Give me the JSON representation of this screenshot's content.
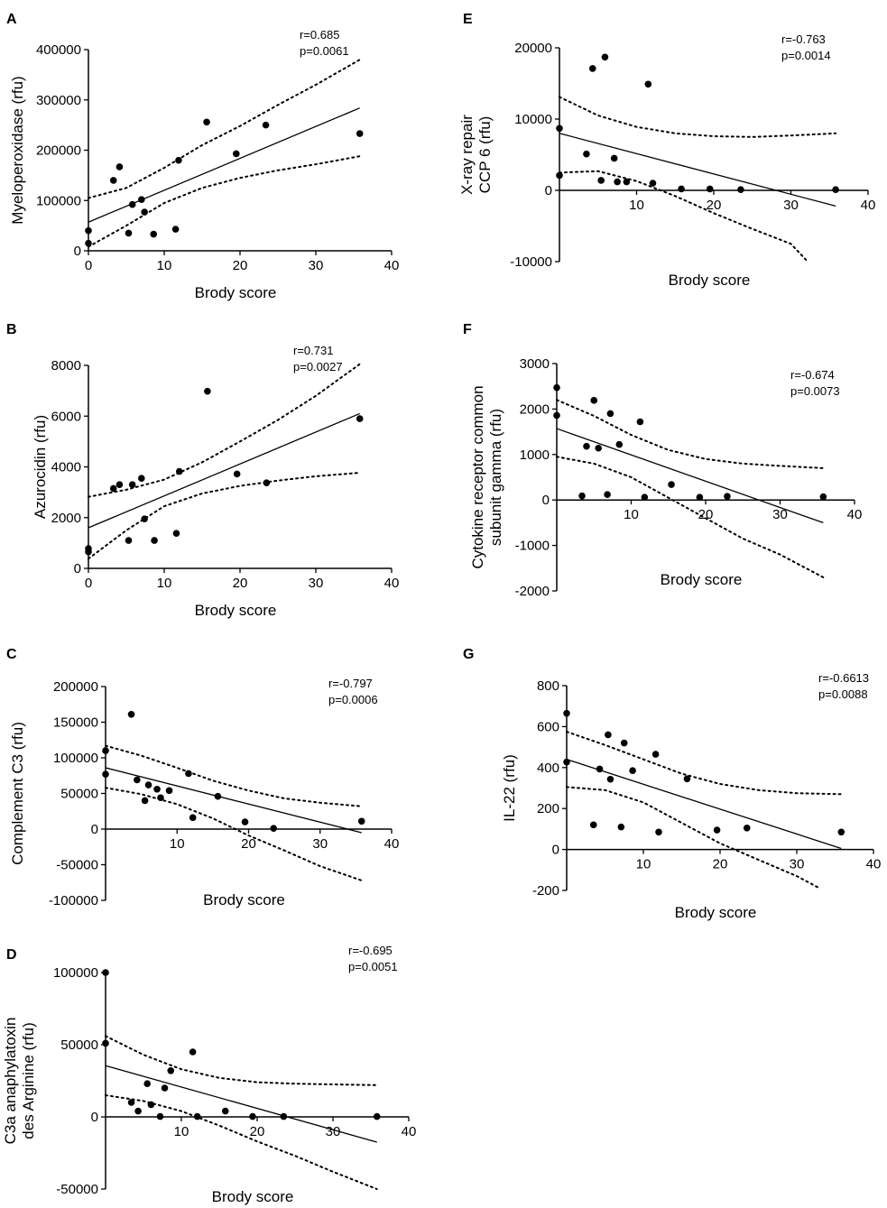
{
  "chart_data": [
    {
      "panel": "A",
      "type": "scatter",
      "ylabel_lines": [
        "Myeloperoxidase (rfu)"
      ],
      "xlabel": "Brody score",
      "xlim": [
        0,
        40
      ],
      "ylim": [
        0,
        400000
      ],
      "xticks": [
        0,
        10,
        20,
        30,
        40
      ],
      "yticks": [
        0,
        100000,
        200000,
        300000,
        400000
      ],
      "stat_r": "r=0.685",
      "stat_p": "p=0.0061",
      "points": [
        [
          0,
          15000
        ],
        [
          0,
          40000
        ],
        [
          3.3,
          140000
        ],
        [
          4.1,
          167000
        ],
        [
          5.3,
          35000
        ],
        [
          5.8,
          92000
        ],
        [
          7,
          102000
        ],
        [
          7.4,
          77000
        ],
        [
          8.6,
          33000
        ],
        [
          11.5,
          43000
        ],
        [
          11.9,
          180000
        ],
        [
          15.6,
          256000
        ],
        [
          19.5,
          193000
        ],
        [
          23.4,
          250000
        ],
        [
          35.8,
          233000
        ]
      ],
      "fit": [
        [
          0,
          57000
        ],
        [
          35.8,
          284000
        ]
      ],
      "ci_upper": [
        [
          0,
          105000
        ],
        [
          5,
          125000
        ],
        [
          10,
          165000
        ],
        [
          15,
          210000
        ],
        [
          20,
          248000
        ],
        [
          25,
          290000
        ],
        [
          30,
          330000
        ],
        [
          35.8,
          380000
        ]
      ],
      "ci_lower": [
        [
          0,
          8000
        ],
        [
          5,
          50000
        ],
        [
          10,
          95000
        ],
        [
          15,
          125000
        ],
        [
          20,
          145000
        ],
        [
          25,
          160000
        ],
        [
          30,
          172000
        ],
        [
          35.8,
          188000
        ]
      ]
    },
    {
      "panel": "B",
      "type": "scatter",
      "ylabel_lines": [
        "Azurocidin (rfu)"
      ],
      "xlabel": "Brody score",
      "xlim": [
        0,
        40
      ],
      "ylim": [
        0,
        8000
      ],
      "xticks": [
        0,
        10,
        20,
        30,
        40
      ],
      "yticks": [
        0,
        2000,
        4000,
        6000,
        8000
      ],
      "stat_r": "r=0.731",
      "stat_p": "p=0.0027",
      "points": [
        [
          0,
          650
        ],
        [
          0,
          780
        ],
        [
          3.3,
          3150
        ],
        [
          4.1,
          3300
        ],
        [
          5.3,
          1100
        ],
        [
          5.8,
          3300
        ],
        [
          7,
          3550
        ],
        [
          7.4,
          1950
        ],
        [
          8.7,
          1100
        ],
        [
          11.6,
          1380
        ],
        [
          12,
          3820
        ],
        [
          15.7,
          6980
        ],
        [
          19.6,
          3720
        ],
        [
          23.5,
          3370
        ],
        [
          35.8,
          5900
        ]
      ],
      "fit": [
        [
          0,
          1600
        ],
        [
          35.8,
          6100
        ]
      ],
      "ci_upper": [
        [
          0,
          2820
        ],
        [
          5,
          3100
        ],
        [
          10,
          3500
        ],
        [
          15,
          4180
        ],
        [
          20,
          5000
        ],
        [
          25,
          5850
        ],
        [
          30,
          6800
        ],
        [
          35.8,
          8050
        ]
      ],
      "ci_lower": [
        [
          0,
          380
        ],
        [
          5,
          1500
        ],
        [
          10,
          2450
        ],
        [
          15,
          2950
        ],
        [
          20,
          3250
        ],
        [
          25,
          3460
        ],
        [
          30,
          3630
        ],
        [
          35.8,
          3770
        ]
      ]
    },
    {
      "panel": "C",
      "type": "scatter",
      "ylabel_lines": [
        "Complement C3 (rfu)"
      ],
      "xlabel": "Brody score",
      "xlim": [
        0,
        40
      ],
      "ylim": [
        -100000,
        200000
      ],
      "xticks": [
        10,
        20,
        30,
        40
      ],
      "yticks": [
        -100000,
        -50000,
        0,
        50000,
        100000,
        150000,
        200000
      ],
      "stat_r": "r=-0.797",
      "stat_p": "p=0.0006",
      "points": [
        [
          0,
          77000
        ],
        [
          0,
          110000
        ],
        [
          3.6,
          161000
        ],
        [
          4.4,
          69000
        ],
        [
          5.5,
          40000
        ],
        [
          6,
          62000
        ],
        [
          7.2,
          56000
        ],
        [
          7.7,
          44000
        ],
        [
          8.9,
          54000
        ],
        [
          11.6,
          78000
        ],
        [
          12.2,
          16000
        ],
        [
          15.7,
          46000
        ],
        [
          19.5,
          10000
        ],
        [
          23.5,
          1000
        ],
        [
          35.8,
          11000
        ]
      ],
      "fit": [
        [
          0,
          86000
        ],
        [
          35.8,
          -5000
        ]
      ],
      "ci_upper": [
        [
          0,
          117000
        ],
        [
          5,
          103000
        ],
        [
          10,
          86000
        ],
        [
          15,
          68000
        ],
        [
          20,
          54000
        ],
        [
          25,
          43000
        ],
        [
          30,
          37000
        ],
        [
          35.8,
          32000
        ]
      ],
      "ci_lower": [
        [
          0,
          58000
        ],
        [
          5,
          49000
        ],
        [
          10,
          35000
        ],
        [
          15,
          15000
        ],
        [
          20,
          -9000
        ],
        [
          25,
          -30000
        ],
        [
          30,
          -52000
        ],
        [
          35.8,
          -72000
        ]
      ]
    },
    {
      "panel": "D",
      "type": "scatter",
      "ylabel_lines": [
        "C3a anaphylatoxin",
        "des Arginine (rfu)"
      ],
      "xlabel": "Brody score",
      "xlim": [
        0,
        40
      ],
      "ylim": [
        -50000,
        100000
      ],
      "xticks": [
        10,
        20,
        30,
        40
      ],
      "yticks": [
        -50000,
        0,
        50000,
        100000
      ],
      "stat_r": "r=-0.695",
      "stat_p": "p=0.0051",
      "points": [
        [
          0,
          100000
        ],
        [
          0,
          51000
        ],
        [
          3.4,
          10000
        ],
        [
          4.3,
          4000
        ],
        [
          5.5,
          23000
        ],
        [
          6,
          8500
        ],
        [
          7.2,
          300
        ],
        [
          7.8,
          20000
        ],
        [
          8.6,
          32000
        ],
        [
          11.5,
          45000
        ],
        [
          12.1,
          300
        ],
        [
          15.8,
          4000
        ],
        [
          19.4,
          300
        ],
        [
          23.5,
          300
        ],
        [
          35.8,
          300
        ]
      ],
      "fit": [
        [
          0,
          35500
        ],
        [
          35.8,
          -17500
        ]
      ],
      "ci_upper": [
        [
          0,
          56000
        ],
        [
          5,
          43000
        ],
        [
          10,
          33000
        ],
        [
          15,
          27000
        ],
        [
          20,
          24000
        ],
        [
          25,
          23000
        ],
        [
          30,
          22500
        ],
        [
          35.8,
          22000
        ]
      ],
      "ci_lower": [
        [
          0,
          15000
        ],
        [
          5,
          11000
        ],
        [
          10,
          4000
        ],
        [
          15,
          -6000
        ],
        [
          20,
          -17000
        ],
        [
          25,
          -27000
        ],
        [
          30,
          -38000
        ],
        [
          35.8,
          -50000
        ]
      ]
    },
    {
      "panel": "E",
      "type": "scatter",
      "ylabel_lines": [
        "X-ray repair",
        "CCP 6  (rfu)"
      ],
      "xlabel": "Brody score",
      "xlim": [
        0,
        40
      ],
      "ylim": [
        -10000,
        20000
      ],
      "xticks": [
        10,
        20,
        30,
        40
      ],
      "yticks": [
        -10000,
        0,
        10000,
        20000
      ],
      "stat_r": "r=-0.763",
      "stat_p": "p=0.0014",
      "points": [
        [
          0,
          8700
        ],
        [
          0,
          2100
        ],
        [
          3.5,
          5100
        ],
        [
          4.3,
          17100
        ],
        [
          5.4,
          1400
        ],
        [
          5.9,
          18700
        ],
        [
          7.1,
          4500
        ],
        [
          7.5,
          1200
        ],
        [
          8.7,
          1200
        ],
        [
          11.5,
          14900
        ],
        [
          12.1,
          1000
        ],
        [
          15.8,
          200
        ],
        [
          19.5,
          200
        ],
        [
          23.5,
          100
        ],
        [
          35.8,
          100
        ]
      ],
      "fit": [
        [
          0,
          8000
        ],
        [
          35.8,
          -2200
        ]
      ],
      "ci_upper": [
        [
          0,
          13100
        ],
        [
          5,
          10500
        ],
        [
          10,
          8900
        ],
        [
          15,
          8000
        ],
        [
          20,
          7600
        ],
        [
          25,
          7500
        ],
        [
          30,
          7700
        ],
        [
          35.8,
          8000
        ]
      ],
      "ci_lower": [
        [
          0,
          2500
        ],
        [
          5,
          2700
        ],
        [
          10,
          1300
        ],
        [
          15,
          -800
        ],
        [
          20,
          -3200
        ],
        [
          25,
          -5400
        ],
        [
          30,
          -7500
        ],
        [
          32,
          -9800
        ]
      ]
    },
    {
      "panel": "F",
      "type": "scatter",
      "ylabel_lines": [
        "Cytokine receptor common",
        "subunit gamma  (rfu)"
      ],
      "xlabel": "Brody score",
      "xlim": [
        0,
        40
      ],
      "ylim": [
        -2000,
        3000
      ],
      "xticks": [
        10,
        20,
        30,
        40
      ],
      "yticks": [
        -2000,
        -1000,
        0,
        1000,
        2000,
        3000
      ],
      "stat_r": "r=-0.674",
      "stat_p": "p=0.0073",
      "points": [
        [
          0,
          2470
        ],
        [
          0,
          1860
        ],
        [
          3.4,
          90
        ],
        [
          4,
          1180
        ],
        [
          5,
          2190
        ],
        [
          5.6,
          1140
        ],
        [
          6.8,
          120
        ],
        [
          7.2,
          1900
        ],
        [
          8.4,
          1220
        ],
        [
          11.2,
          1720
        ],
        [
          11.8,
          60
        ],
        [
          15.4,
          340
        ],
        [
          19.2,
          60
        ],
        [
          22.9,
          80
        ],
        [
          35.8,
          70
        ]
      ],
      "fit": [
        [
          0,
          1570
        ],
        [
          35.8,
          -500
        ]
      ],
      "ci_upper": [
        [
          0,
          2200
        ],
        [
          5,
          1850
        ],
        [
          10,
          1430
        ],
        [
          15,
          1100
        ],
        [
          20,
          900
        ],
        [
          25,
          800
        ],
        [
          30,
          750
        ],
        [
          35.8,
          700
        ]
      ],
      "ci_lower": [
        [
          0,
          950
        ],
        [
          5,
          800
        ],
        [
          10,
          500
        ],
        [
          15,
          50
        ],
        [
          20,
          -400
        ],
        [
          25,
          -850
        ],
        [
          30,
          -1200
        ],
        [
          35.8,
          -1700
        ]
      ]
    },
    {
      "panel": "G",
      "type": "scatter",
      "ylabel_lines": [
        "IL-22 (rfu)"
      ],
      "xlabel": "Brody score",
      "xlim": [
        0,
        40
      ],
      "ylim": [
        -200,
        800
      ],
      "xticks": [
        10,
        20,
        30,
        40
      ],
      "yticks": [
        -200,
        0,
        200,
        400,
        600,
        800
      ],
      "stat_r": "r=-0.6613",
      "stat_p": "p=0.0088",
      "points": [
        [
          0,
          665
        ],
        [
          0,
          427
        ],
        [
          3.5,
          120
        ],
        [
          4.3,
          393
        ],
        [
          5.4,
          560
        ],
        [
          5.7,
          343
        ],
        [
          7.1,
          110
        ],
        [
          7.5,
          520
        ],
        [
          8.6,
          385
        ],
        [
          11.6,
          465
        ],
        [
          12,
          85
        ],
        [
          15.7,
          345
        ],
        [
          19.6,
          95
        ],
        [
          23.5,
          105
        ],
        [
          35.8,
          85
        ]
      ],
      "fit": [
        [
          0,
          440
        ],
        [
          35.8,
          5
        ]
      ],
      "ci_upper": [
        [
          0,
          575
        ],
        [
          5,
          510
        ],
        [
          10,
          440
        ],
        [
          15,
          370
        ],
        [
          20,
          320
        ],
        [
          25,
          290
        ],
        [
          30,
          275
        ],
        [
          35.8,
          270
        ]
      ],
      "ci_lower": [
        [
          0,
          305
        ],
        [
          5,
          290
        ],
        [
          10,
          230
        ],
        [
          15,
          130
        ],
        [
          20,
          30
        ],
        [
          25,
          -50
        ],
        [
          30,
          -130
        ],
        [
          33,
          -190
        ]
      ]
    }
  ]
}
